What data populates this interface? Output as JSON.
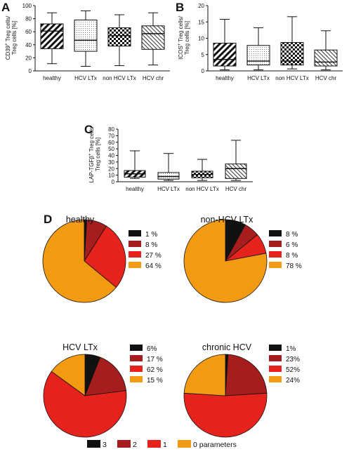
{
  "panels": [
    {
      "letter": "A",
      "type": "boxplot",
      "ylabel_lines": [
        [
          "CD39",
          "+",
          " Treg cells/"
        ],
        [
          "Treg cells [%]"
        ]
      ],
      "ylim": [
        0,
        100
      ],
      "yticks": [
        0,
        20,
        40,
        60,
        80,
        100
      ],
      "categories": [
        "healthy",
        "HCV LTx",
        "non HCV LTx",
        "HCV chr"
      ],
      "boxes": [
        {
          "min": 11,
          "q1": 34,
          "median": 61,
          "q3": 72,
          "max": 89,
          "pattern": "diag"
        },
        {
          "min": 7,
          "q1": 30,
          "median": 47,
          "q3": 78,
          "max": 92,
          "pattern": "dots"
        },
        {
          "min": 8,
          "q1": 38,
          "median": 54,
          "q3": 66,
          "max": 86,
          "pattern": "checker"
        },
        {
          "min": 9,
          "q1": 33,
          "median": 57,
          "q3": 69,
          "max": 89,
          "pattern": "diag2"
        }
      ]
    },
    {
      "letter": "B",
      "type": "boxplot",
      "ylabel_lines": [
        [
          "ICOS",
          "+",
          " Treg cells/"
        ],
        [
          "Treg cells [%]"
        ]
      ],
      "ylim": [
        0,
        20
      ],
      "yticks": [
        0,
        5,
        10,
        15,
        20
      ],
      "categories": [
        "healthy",
        "HCV LTx",
        "non HCV LTx",
        "HCV chr"
      ],
      "boxes": [
        {
          "min": 0.3,
          "q1": 1.5,
          "median": 3.5,
          "q3": 8.5,
          "max": 15.8,
          "pattern": "diag"
        },
        {
          "min": 0.3,
          "q1": 1.8,
          "median": 3.0,
          "q3": 7.8,
          "max": 13.2,
          "pattern": "dots"
        },
        {
          "min": 0.6,
          "q1": 1.8,
          "median": 3.0,
          "q3": 8.7,
          "max": 16.6,
          "pattern": "checker"
        },
        {
          "min": 0.3,
          "q1": 1.5,
          "median": 2.7,
          "q3": 6.4,
          "max": 12.3,
          "pattern": "diag2"
        }
      ]
    },
    {
      "letter": "C",
      "type": "boxplot",
      "ylabel_lines": [
        [
          "LAP-TGFβ",
          "+",
          " Treg cells/"
        ],
        [
          "Treg cells [%]"
        ]
      ],
      "ylim": [
        0,
        80
      ],
      "yticks": [
        0,
        10,
        20,
        30,
        40,
        50,
        60,
        70,
        80
      ],
      "categories": [
        "healthy",
        "HCV LTx",
        "non HCV LTx",
        "HCV chr"
      ],
      "boxes": [
        {
          "min": 5,
          "q1": 7,
          "median": 12,
          "q3": 17,
          "max": 47,
          "pattern": "diag"
        },
        {
          "min": 2,
          "q1": 4,
          "median": 8,
          "q3": 14,
          "max": 43,
          "pattern": "dots"
        },
        {
          "min": 2,
          "q1": 6,
          "median": 11,
          "q3": 16,
          "max": 34,
          "pattern": "checker"
        },
        {
          "min": 2,
          "q1": 5,
          "median": 20,
          "q3": 27,
          "max": 63,
          "pattern": "diag2"
        }
      ]
    }
  ],
  "panel_d_letter": "D",
  "pies": [
    {
      "title": "healthy",
      "values": [
        1,
        8,
        27,
        64
      ],
      "labels": [
        "1 %",
        "8 %",
        "27 %",
        "64 %"
      ]
    },
    {
      "title": "non-HCV LTx",
      "values": [
        8,
        6,
        8,
        78
      ],
      "labels": [
        "8 %",
        "6 %",
        "8 %",
        "78 %"
      ]
    },
    {
      "title": "HCV LTx",
      "values": [
        6,
        17,
        62,
        15
      ],
      "labels": [
        "6%",
        "17 %",
        "62 %",
        "15 %"
      ]
    },
    {
      "title": "chronic HCV",
      "values": [
        1,
        23,
        52,
        24
      ],
      "labels": [
        "1%",
        "23%",
        "52%",
        "24%"
      ]
    }
  ],
  "pie_colors": [
    "#111111",
    "#a51d1d",
    "#e5221c",
    "#f39a13"
  ],
  "legend": [
    "3",
    "2",
    "1",
    "0 parameters"
  ],
  "chart_data": [
    {
      "type": "boxplot",
      "ylabel": "CD39+ Treg cells/ Treg cells [%]",
      "categories": [
        "healthy",
        "HCV LTx",
        "non HCV LTx",
        "HCV chr"
      ],
      "ylim": [
        0,
        100
      ],
      "series": [
        {
          "values": [
            [
              11,
              34,
              61,
              72,
              89
            ],
            [
              7,
              30,
              47,
              78,
              92
            ],
            [
              8,
              38,
              54,
              66,
              86
            ],
            [
              9,
              33,
              57,
              69,
              89
            ]
          ]
        }
      ]
    },
    {
      "type": "boxplot",
      "ylabel": "ICOS+ Treg cells/ Treg cells [%]",
      "categories": [
        "healthy",
        "HCV LTx",
        "non HCV LTx",
        "HCV chr"
      ],
      "ylim": [
        0,
        20
      ],
      "series": [
        {
          "values": [
            [
              0.3,
              1.5,
              3.5,
              8.5,
              15.8
            ],
            [
              0.3,
              1.8,
              3.0,
              7.8,
              13.2
            ],
            [
              0.6,
              1.8,
              3.0,
              8.7,
              16.6
            ],
            [
              0.3,
              1.5,
              2.7,
              6.4,
              12.3
            ]
          ]
        }
      ]
    },
    {
      "type": "boxplot",
      "ylabel": "LAP-TGFβ+ Treg cells/ Treg cells [%]",
      "categories": [
        "healthy",
        "HCV LTx",
        "non HCV LTx",
        "HCV chr"
      ],
      "ylim": [
        0,
        80
      ],
      "series": [
        {
          "values": [
            [
              5,
              7,
              12,
              17,
              47
            ],
            [
              2,
              4,
              8,
              14,
              43
            ],
            [
              2,
              6,
              11,
              16,
              34
            ],
            [
              2,
              5,
              20,
              27,
              63
            ]
          ]
        }
      ]
    },
    {
      "type": "pie",
      "title": "healthy",
      "categories": [
        "3",
        "2",
        "1",
        "0 parameters"
      ],
      "values": [
        1,
        8,
        27,
        64
      ]
    },
    {
      "type": "pie",
      "title": "non-HCV LTx",
      "categories": [
        "3",
        "2",
        "1",
        "0 parameters"
      ],
      "values": [
        8,
        6,
        8,
        78
      ]
    },
    {
      "type": "pie",
      "title": "HCV LTx",
      "categories": [
        "3",
        "2",
        "1",
        "0 parameters"
      ],
      "values": [
        6,
        17,
        62,
        15
      ]
    },
    {
      "type": "pie",
      "title": "chronic HCV",
      "categories": [
        "3",
        "2",
        "1",
        "0 parameters"
      ],
      "values": [
        1,
        23,
        52,
        24
      ]
    }
  ]
}
